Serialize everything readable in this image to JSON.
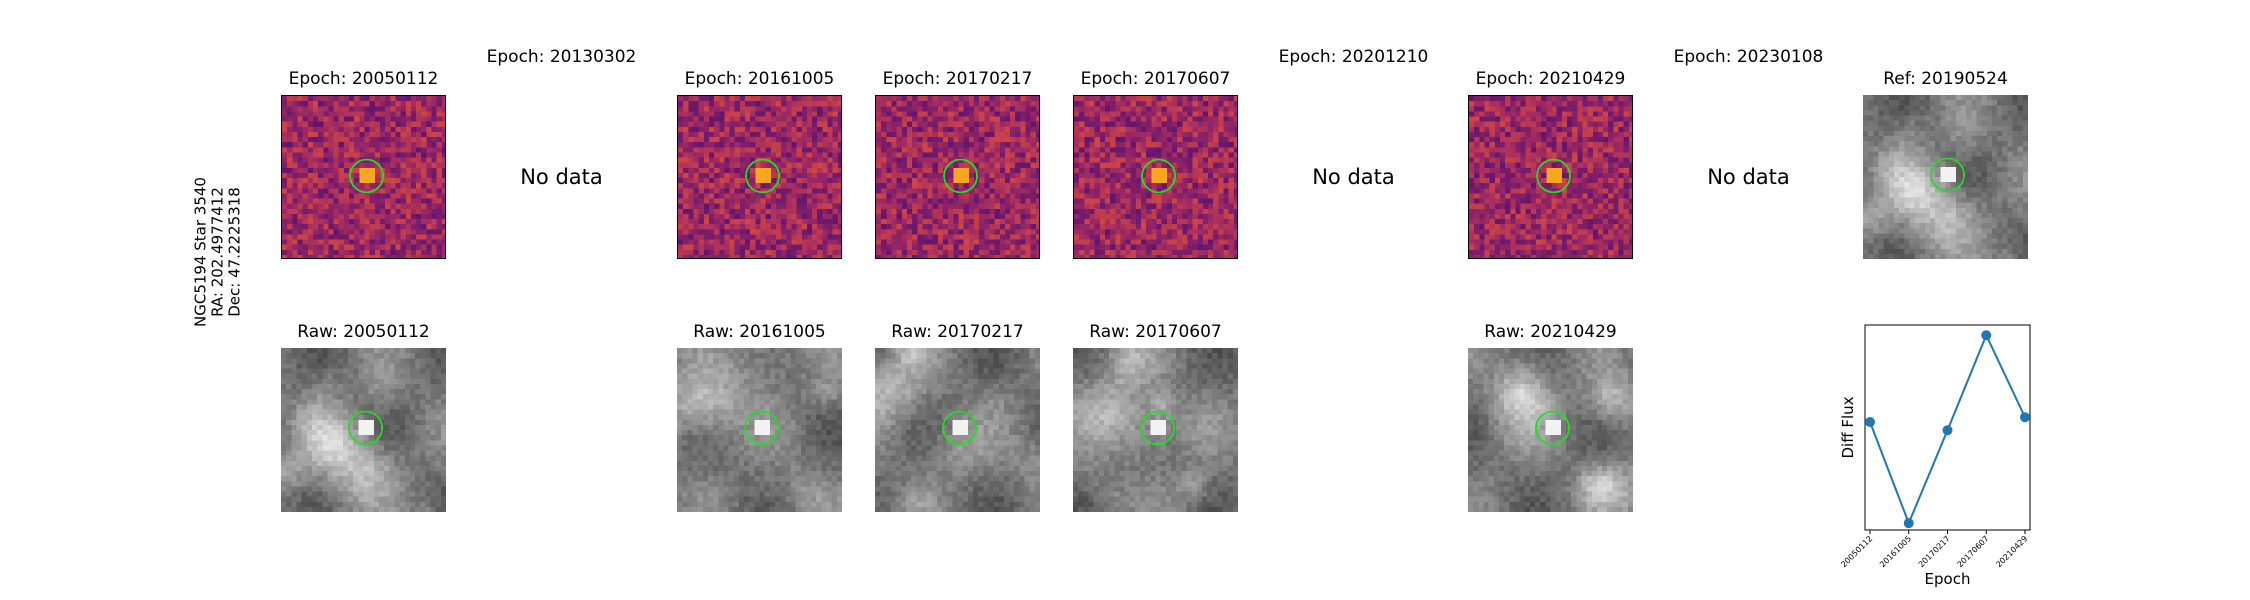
{
  "star_label": {
    "name": "NGC5194 Star 3540",
    "ra": "RA: 202.4977412",
    "dec": "Dec: 47.2225318"
  },
  "no_data_text": "No data",
  "colors": {
    "aperture": "#22dd22",
    "line": "#1f77b4"
  },
  "epochs": [
    {
      "title": "Epoch: 20050112",
      "raw_title": "Raw: 20050112",
      "has_data": true
    },
    {
      "title": "Epoch: 20130302",
      "raw_title": "",
      "has_data": false
    },
    {
      "title": "Epoch: 20161005",
      "raw_title": "Raw: 20161005",
      "has_data": true
    },
    {
      "title": "Epoch: 20170217",
      "raw_title": "Raw: 20170217",
      "has_data": true
    },
    {
      "title": "Epoch: 20170607",
      "raw_title": "Raw: 20170607",
      "has_data": true
    },
    {
      "title": "Epoch: 20201210",
      "raw_title": "",
      "has_data": false
    },
    {
      "title": "Epoch: 20210429",
      "raw_title": "Raw: 20210429",
      "has_data": true
    },
    {
      "title": "Epoch: 20230108",
      "raw_title": "",
      "has_data": false
    }
  ],
  "reference": {
    "title": "Ref: 20190524"
  },
  "chart_data": {
    "type": "line",
    "title": "",
    "xlabel": "Epoch",
    "ylabel": "Diff Flux",
    "categories": [
      "20050112",
      "20161005",
      "20170217",
      "20170607",
      "20210429"
    ],
    "series": [
      {
        "values": [
          0.58,
          -0.9,
          0.46,
          1.85,
          0.65
        ]
      }
    ],
    "ylim": [
      -1.0,
      2.0
    ],
    "grid": false,
    "legend": "none"
  }
}
